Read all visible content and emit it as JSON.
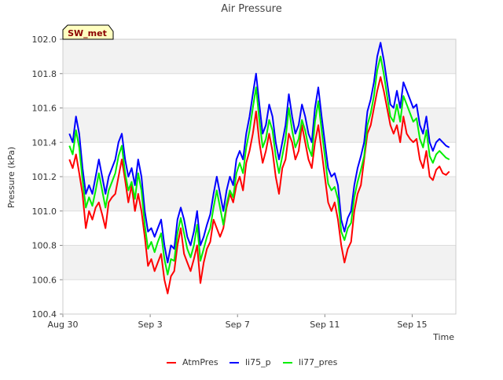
{
  "chart_data": {
    "type": "line",
    "title": "Air Pressure",
    "xlabel": "Time",
    "ylabel": "Pressure (kPa)",
    "badge": "SW_met",
    "xlim": [
      0,
      18.0
    ],
    "ylim": [
      100.4,
      102.0
    ],
    "x_ticks": [
      {
        "x": 0,
        "label": "Aug 30"
      },
      {
        "x": 4,
        "label": "Sep 3"
      },
      {
        "x": 8,
        "label": "Sep 7"
      },
      {
        "x": 12,
        "label": "Sep 11"
      },
      {
        "x": 16,
        "label": "Sep 15"
      }
    ],
    "y_ticks": [
      "100.4",
      "100.6",
      "100.8",
      "101.0",
      "101.2",
      "101.4",
      "101.6",
      "101.8",
      "102.0"
    ],
    "grid": true,
    "legend_position": "bottom",
    "series": [
      {
        "name": "AtmPres",
        "color": "#ff0000",
        "x": [
          0.3,
          0.45,
          0.6,
          0.75,
          0.9,
          1.05,
          1.2,
          1.35,
          1.5,
          1.65,
          1.8,
          1.95,
          2.1,
          2.25,
          2.4,
          2.55,
          2.7,
          2.85,
          3.0,
          3.15,
          3.3,
          3.45,
          3.6,
          3.75,
          3.9,
          4.05,
          4.2,
          4.35,
          4.5,
          4.65,
          4.8,
          4.95,
          5.1,
          5.25,
          5.4,
          5.55,
          5.7,
          5.85,
          6.0,
          6.15,
          6.3,
          6.45,
          6.6,
          6.75,
          6.9,
          7.05,
          7.2,
          7.35,
          7.5,
          7.65,
          7.8,
          7.95,
          8.1,
          8.25,
          8.4,
          8.55,
          8.7,
          8.85,
          9.0,
          9.15,
          9.3,
          9.45,
          9.6,
          9.75,
          9.9,
          10.05,
          10.2,
          10.35,
          10.5,
          10.65,
          10.8,
          10.95,
          11.1,
          11.25,
          11.4,
          11.55,
          11.7,
          11.85,
          12.0,
          12.15,
          12.3,
          12.45,
          12.6,
          12.75,
          12.9,
          13.05,
          13.2,
          13.35,
          13.5,
          13.65,
          13.8,
          13.95,
          14.1,
          14.25,
          14.4,
          14.55,
          14.7,
          14.85,
          15.0,
          15.15,
          15.3,
          15.45,
          15.6,
          15.75,
          15.9,
          16.05,
          16.2,
          16.35,
          16.5,
          16.65,
          16.8,
          16.95,
          17.1,
          17.25,
          17.4,
          17.55,
          17.7
        ],
        "y": [
          101.3,
          101.25,
          101.33,
          101.22,
          101.1,
          100.9,
          101.0,
          100.95,
          101.02,
          101.05,
          100.98,
          100.9,
          101.05,
          101.08,
          101.1,
          101.2,
          101.3,
          101.18,
          101.05,
          101.15,
          101.0,
          101.1,
          101.0,
          100.85,
          100.68,
          100.72,
          100.65,
          100.7,
          100.75,
          100.6,
          100.52,
          100.62,
          100.65,
          100.8,
          100.9,
          100.75,
          100.7,
          100.65,
          100.72,
          100.8,
          100.58,
          100.7,
          100.78,
          100.82,
          100.95,
          100.9,
          100.85,
          100.9,
          101.02,
          101.1,
          101.05,
          101.15,
          101.2,
          101.12,
          101.28,
          101.35,
          101.45,
          101.58,
          101.4,
          101.28,
          101.35,
          101.45,
          101.35,
          101.2,
          101.1,
          101.25,
          101.3,
          101.45,
          101.4,
          101.3,
          101.35,
          101.5,
          101.4,
          101.3,
          101.25,
          101.4,
          101.5,
          101.35,
          101.2,
          101.05,
          101.0,
          101.05,
          100.95,
          100.8,
          100.7,
          100.78,
          100.82,
          101.0,
          101.1,
          101.15,
          101.3,
          101.45,
          101.5,
          101.6,
          101.7,
          101.78,
          101.7,
          101.6,
          101.5,
          101.45,
          101.5,
          101.4,
          101.55,
          101.45,
          101.42,
          101.4,
          101.42,
          101.3,
          101.25,
          101.35,
          101.2,
          101.18,
          101.24,
          101.26,
          101.22,
          101.21,
          101.23
        ]
      },
      {
        "name": "li75_p",
        "color": "#0000ff",
        "x": [
          0.3,
          0.45,
          0.6,
          0.75,
          0.9,
          1.05,
          1.2,
          1.35,
          1.5,
          1.65,
          1.8,
          1.95,
          2.1,
          2.25,
          2.4,
          2.55,
          2.7,
          2.85,
          3.0,
          3.15,
          3.3,
          3.45,
          3.6,
          3.75,
          3.9,
          4.05,
          4.2,
          4.35,
          4.5,
          4.65,
          4.8,
          4.95,
          5.1,
          5.25,
          5.4,
          5.55,
          5.7,
          5.85,
          6.0,
          6.15,
          6.3,
          6.45,
          6.6,
          6.75,
          6.9,
          7.05,
          7.2,
          7.35,
          7.5,
          7.65,
          7.8,
          7.95,
          8.1,
          8.25,
          8.4,
          8.55,
          8.7,
          8.85,
          9.0,
          9.15,
          9.3,
          9.45,
          9.6,
          9.75,
          9.9,
          10.05,
          10.2,
          10.35,
          10.5,
          10.65,
          10.8,
          10.95,
          11.1,
          11.25,
          11.4,
          11.55,
          11.7,
          11.85,
          12.0,
          12.15,
          12.3,
          12.45,
          12.6,
          12.75,
          12.9,
          13.05,
          13.2,
          13.35,
          13.5,
          13.65,
          13.8,
          13.95,
          14.1,
          14.25,
          14.4,
          14.55,
          14.7,
          14.85,
          15.0,
          15.15,
          15.3,
          15.45,
          15.6,
          15.75,
          15.9,
          16.05,
          16.2,
          16.35,
          16.5,
          16.65,
          16.8,
          16.95,
          17.1,
          17.25,
          17.4,
          17.55,
          17.7
        ],
        "y": [
          101.45,
          101.4,
          101.55,
          101.45,
          101.25,
          101.1,
          101.15,
          101.1,
          101.2,
          101.3,
          101.2,
          101.1,
          101.2,
          101.25,
          101.3,
          101.4,
          101.45,
          101.3,
          101.2,
          101.25,
          101.15,
          101.3,
          101.2,
          101.0,
          100.88,
          100.9,
          100.85,
          100.9,
          100.95,
          100.8,
          100.7,
          100.8,
          100.78,
          100.95,
          101.02,
          100.95,
          100.85,
          100.8,
          100.88,
          101.0,
          100.8,
          100.85,
          100.92,
          100.98,
          101.1,
          101.2,
          101.1,
          101.0,
          101.12,
          101.2,
          101.15,
          101.3,
          101.35,
          101.3,
          101.45,
          101.55,
          101.68,
          101.8,
          101.62,
          101.45,
          101.5,
          101.62,
          101.55,
          101.4,
          101.3,
          101.4,
          101.5,
          101.68,
          101.55,
          101.45,
          101.5,
          101.62,
          101.55,
          101.45,
          101.4,
          101.6,
          101.72,
          101.55,
          101.4,
          101.25,
          101.2,
          101.22,
          101.15,
          100.95,
          100.88,
          100.96,
          101.0,
          101.15,
          101.25,
          101.32,
          101.4,
          101.58,
          101.65,
          101.75,
          101.9,
          101.98,
          101.88,
          101.75,
          101.62,
          101.6,
          101.7,
          101.6,
          101.75,
          101.7,
          101.65,
          101.6,
          101.62,
          101.5,
          101.45,
          101.55,
          101.4,
          101.35,
          101.4,
          101.42,
          101.4,
          101.38,
          101.37
        ]
      },
      {
        "name": "li77_pres",
        "color": "#00ee00",
        "x": [
          0.3,
          0.45,
          0.6,
          0.75,
          0.9,
          1.05,
          1.2,
          1.35,
          1.5,
          1.65,
          1.8,
          1.95,
          2.1,
          2.25,
          2.4,
          2.55,
          2.7,
          2.85,
          3.0,
          3.15,
          3.3,
          3.45,
          3.6,
          3.75,
          3.9,
          4.05,
          4.2,
          4.35,
          4.5,
          4.65,
          4.8,
          4.95,
          5.1,
          5.25,
          5.4,
          5.55,
          5.7,
          5.85,
          6.0,
          6.15,
          6.3,
          6.45,
          6.6,
          6.75,
          6.9,
          7.05,
          7.2,
          7.35,
          7.5,
          7.65,
          7.8,
          7.95,
          8.1,
          8.25,
          8.4,
          8.55,
          8.7,
          8.85,
          9.0,
          9.15,
          9.3,
          9.45,
          9.6,
          9.75,
          9.9,
          10.05,
          10.2,
          10.35,
          10.5,
          10.65,
          10.8,
          10.95,
          11.1,
          11.25,
          11.4,
          11.55,
          11.7,
          11.85,
          12.0,
          12.15,
          12.3,
          12.45,
          12.6,
          12.75,
          12.9,
          13.05,
          13.2,
          13.35,
          13.5,
          13.65,
          13.8,
          13.95,
          14.1,
          14.25,
          14.4,
          14.55,
          14.7,
          14.85,
          15.0,
          15.15,
          15.3,
          15.45,
          15.6,
          15.75,
          15.9,
          16.05,
          16.2,
          16.35,
          16.5,
          16.65,
          16.8,
          16.95,
          17.1,
          17.25,
          17.4,
          17.55,
          17.7
        ],
        "y": [
          101.38,
          101.33,
          101.47,
          101.37,
          101.18,
          101.02,
          101.08,
          101.03,
          101.12,
          101.22,
          101.12,
          101.02,
          101.12,
          101.17,
          101.22,
          101.32,
          101.38,
          101.22,
          101.12,
          101.17,
          101.07,
          101.22,
          101.12,
          100.92,
          100.78,
          100.82,
          100.76,
          100.82,
          100.87,
          100.72,
          100.63,
          100.72,
          100.71,
          100.87,
          100.96,
          100.87,
          100.78,
          100.73,
          100.8,
          100.92,
          100.71,
          100.78,
          100.85,
          100.9,
          101.02,
          101.12,
          101.02,
          100.92,
          101.04,
          101.12,
          101.08,
          101.22,
          101.28,
          101.22,
          101.37,
          101.47,
          101.6,
          101.72,
          101.53,
          101.37,
          101.42,
          101.53,
          101.47,
          101.32,
          101.22,
          101.32,
          101.42,
          101.6,
          101.47,
          101.37,
          101.42,
          101.53,
          101.47,
          101.37,
          101.32,
          101.52,
          101.64,
          101.47,
          101.32,
          101.16,
          101.12,
          101.14,
          101.07,
          100.88,
          100.83,
          100.9,
          100.93,
          101.08,
          101.17,
          101.24,
          101.32,
          101.5,
          101.57,
          101.67,
          101.82,
          101.9,
          101.8,
          101.67,
          101.55,
          101.52,
          101.62,
          101.52,
          101.67,
          101.62,
          101.57,
          101.52,
          101.54,
          101.42,
          101.37,
          101.47,
          101.32,
          101.28,
          101.33,
          101.35,
          101.33,
          101.31,
          101.3
        ]
      }
    ]
  }
}
